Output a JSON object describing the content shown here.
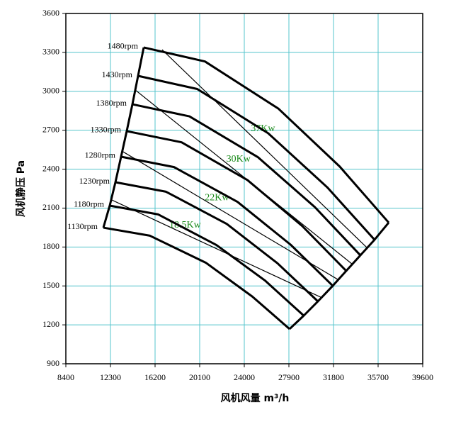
{
  "chart_data": {
    "type": "line",
    "xlabel": "风机风量  m³/h",
    "ylabel": "风机静压 Pa",
    "xlim": [
      8400,
      39600
    ],
    "xticks": [
      8400,
      12300,
      16200,
      20100,
      24000,
      27900,
      31800,
      35700,
      39600
    ],
    "ylim": [
      900,
      3600
    ],
    "yticks": [
      900,
      1200,
      1500,
      1800,
      2100,
      2400,
      2700,
      3000,
      3300,
      3600
    ],
    "grid": true,
    "grid_color": "#55c4cc",
    "series": [
      {
        "name": "1480rpm",
        "color": "#000000",
        "x": [
          15209,
          20563,
          26988,
          32343,
          36626
        ],
        "values": [
          3338,
          3230,
          2866,
          2420,
          1988
        ]
      },
      {
        "name": "1430rpm",
        "color": "#000000",
        "x": [
          14714,
          19883,
          26085,
          31253,
          35388
        ],
        "values": [
          3119,
          3018,
          2677,
          2260,
          1856
        ]
      },
      {
        "name": "1380rpm",
        "color": "#000000",
        "x": [
          14219,
          19202,
          25181,
          30164,
          34150
        ],
        "values": [
          2900,
          2807,
          2493,
          2108,
          1736
        ]
      },
      {
        "name": "1330rpm",
        "color": "#000000",
        "x": [
          13723,
          18520,
          24277,
          29074,
          32912
        ],
        "values": [
          2693,
          2607,
          2316,
          1961,
          1616
        ]
      },
      {
        "name": "1280rpm",
        "color": "#000000",
        "x": [
          13228,
          17855,
          23407,
          28034,
          31736
        ],
        "values": [
          2496,
          2416,
          2148,
          1819,
          1501
        ]
      },
      {
        "name": "1230rpm",
        "color": "#000000",
        "x": [
          12733,
          17159,
          22470,
          26895,
          30436
        ],
        "values": [
          2299,
          2226,
          1978,
          1675,
          1381
        ]
      },
      {
        "name": "1180rpm",
        "color": "#000000",
        "x": [
          12238,
          16478,
          21566,
          25806,
          29198
        ],
        "values": [
          2119,
          2051,
          1815,
          1542,
          1271
        ]
      },
      {
        "name": "1130rpm",
        "color": "#000000",
        "x": [
          11681,
          15751,
          20634,
          24704,
          27960
        ],
        "values": [
          1949,
          1887,
          1679,
          1418,
          1168
        ]
      }
    ],
    "power_lines": [
      {
        "name": "37Kw",
        "color": "#1a8a1a",
        "x": [
          16818,
          34769
        ],
        "values": [
          3321,
          1791
        ]
      },
      {
        "name": "30Kw",
        "color": "#1a8a1a",
        "x": [
          14404,
          33408
        ],
        "values": [
          3015,
          1670
        ]
      },
      {
        "name": "22Kw",
        "color": "#1a8a1a",
        "x": [
          13290,
          32170
        ],
        "values": [
          2540,
          1550
        ]
      },
      {
        "name": "18.5Kw",
        "color": "#1a8a1a",
        "x": [
          12423,
          30808
        ],
        "values": [
          2162,
          1408
        ]
      }
    ],
    "boundaries": [
      {
        "x": [
          15209,
          14714,
          14219,
          13723,
          13228,
          12733,
          12238,
          11681
        ],
        "values": [
          3338,
          3119,
          2900,
          2693,
          2496,
          2299,
          2119,
          1949
        ]
      },
      {
        "x": [
          36626,
          35388,
          34150,
          32912,
          31736,
          30436,
          29198,
          27960
        ],
        "values": [
          1988,
          1856,
          1736,
          1616,
          1501,
          1381,
          1271,
          1168
        ]
      }
    ]
  }
}
